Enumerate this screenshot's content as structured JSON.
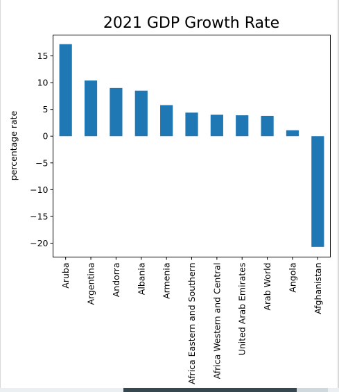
{
  "chart_data": {
    "type": "bar",
    "title": "2021 GDP Growth Rate",
    "xlabel": "",
    "ylabel": "percentage rate",
    "categories": [
      "Aruba",
      "Argentina",
      "Andorra",
      "Albania",
      "Armenia",
      "Africa Eastern and Southern",
      "Africa Western and Central",
      "United Arab Emirates",
      "Arab World",
      "Angola",
      "Afghanistan"
    ],
    "values": [
      17.2,
      10.4,
      9.0,
      8.5,
      5.8,
      4.4,
      4.0,
      3.9,
      3.8,
      1.1,
      -20.7
    ],
    "yticks": [
      15,
      10,
      5,
      0,
      -5,
      -10,
      -15,
      -20
    ],
    "ytick_labels": [
      "15",
      "10",
      "5",
      "0",
      "−5",
      "−10",
      "−15",
      "−20"
    ],
    "ylim": [
      -22.6,
      18.9
    ],
    "bar_color": "#1f77b4",
    "grid": false,
    "legend": "none"
  }
}
